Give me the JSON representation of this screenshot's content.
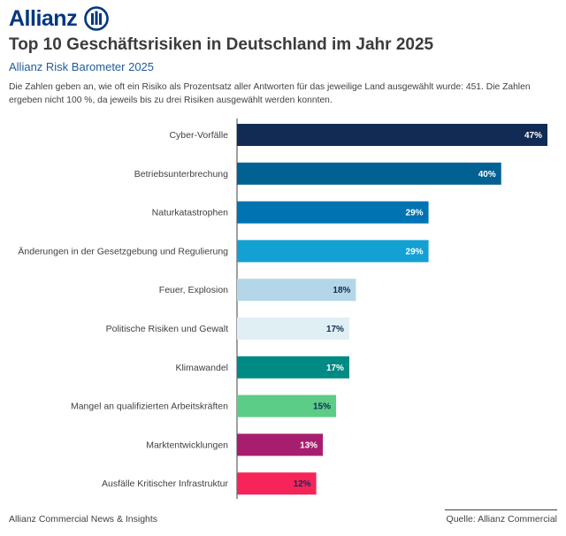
{
  "header": {
    "logo_text": "Allianz",
    "title": "Top 10 Geschäftsrisiken in Deutschland im Jahr 2025",
    "subtitle": "Allianz Risk Barometer 2025",
    "description": "Die Zahlen geben an, wie oft ein Risiko als Prozentsatz aller Antworten für das jeweilige Land ausgewählt wurde: 451. Die Zahlen ergeben nicht 100 %, da jeweils bis zu drei Risiken ausgewählt werden konnten."
  },
  "footer": {
    "left": "Allianz Commercial News & Insights",
    "right": "Quelle: Allianz Commercial"
  },
  "colors": {
    "brand": "#003781"
  },
  "chart_data": {
    "type": "bar",
    "orientation": "horizontal",
    "title": "Top 10 Geschäftsrisiken in Deutschland im Jahr 2025",
    "xlabel": "",
    "ylabel": "",
    "xlim": [
      0,
      47
    ],
    "value_suffix": "%",
    "categories": [
      "Cyber-Vorfälle",
      "Betriebsunterbrechung",
      "Naturkatastrophen",
      "Änderungen in der Gesetzgebung und Regulierung",
      "Feuer, Explosion",
      "Politische Risiken und Gewalt",
      "Klimawandel",
      "Mangel an qualifizierten Arbeitskräften",
      "Marktentwicklungen",
      "Ausfälle Kritischer Infrastruktur"
    ],
    "values": [
      47,
      40,
      29,
      29,
      18,
      17,
      17,
      15,
      13,
      12
    ],
    "bar_colors": [
      "#122B54",
      "#006192",
      "#0073B3",
      "#13A0D3",
      "#B3D7E6",
      "#DFEFF4",
      "#008A84",
      "#5CCD86",
      "#A81E6E",
      "#F62459"
    ],
    "label_colors": [
      "#ffffff",
      "#ffffff",
      "#ffffff",
      "#ffffff",
      "#122B54",
      "#122B54",
      "#ffffff",
      "#122B54",
      "#ffffff",
      "#122B54"
    ]
  }
}
